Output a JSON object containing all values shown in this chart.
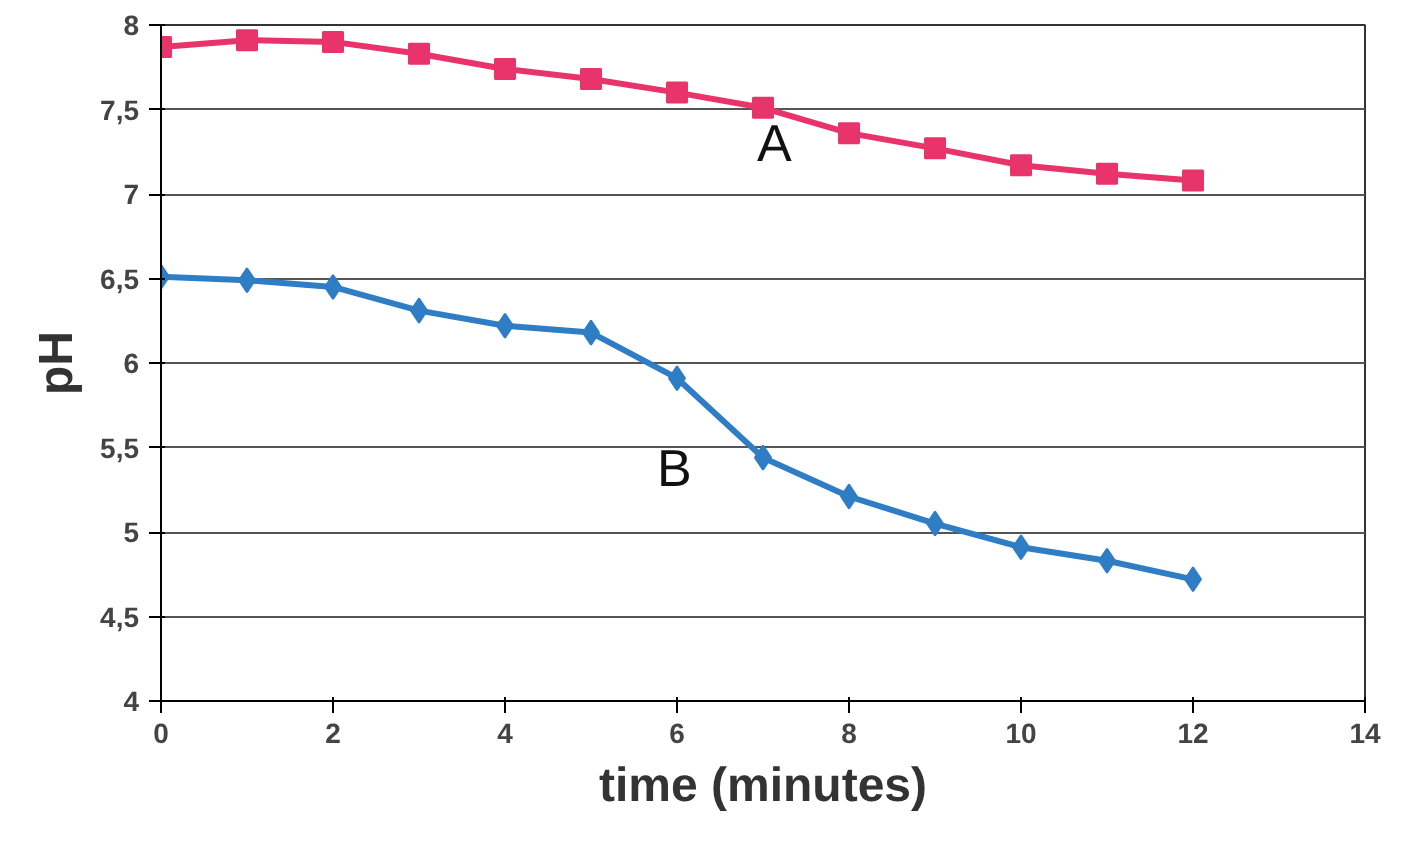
{
  "chart_data": {
    "type": "line",
    "xlabel": "time (minutes)",
    "ylabel": "pH",
    "x": [
      0,
      1,
      2,
      3,
      4,
      5,
      6,
      7,
      8,
      9,
      10,
      11,
      12
    ],
    "series": [
      {
        "name": "A",
        "color": "#e8336b",
        "marker": "square",
        "values": [
          7.87,
          7.91,
          7.9,
          7.83,
          7.74,
          7.68,
          7.6,
          7.51,
          7.36,
          7.27,
          7.17,
          7.12,
          7.08
        ]
      },
      {
        "name": "B",
        "color": "#2e7dc5",
        "marker": "diamond",
        "values": [
          6.51,
          6.49,
          6.45,
          6.31,
          6.22,
          6.18,
          5.91,
          5.44,
          5.21,
          5.05,
          4.91,
          4.83,
          4.72
        ]
      }
    ],
    "xlim": [
      0,
      14
    ],
    "xticks": [
      0,
      2,
      4,
      6,
      8,
      10,
      12,
      14
    ],
    "ylim": [
      4,
      8
    ],
    "yticks": [
      4,
      {
        "value": 4.5,
        "label": "4,5"
      },
      5,
      {
        "value": 5.5,
        "label": "5,5"
      },
      6,
      {
        "value": 6.5,
        "label": "6,5"
      },
      7,
      {
        "value": 7.5,
        "label": "7,5"
      },
      8
    ],
    "grid": "y",
    "legend": false,
    "line_style": "solid"
  }
}
